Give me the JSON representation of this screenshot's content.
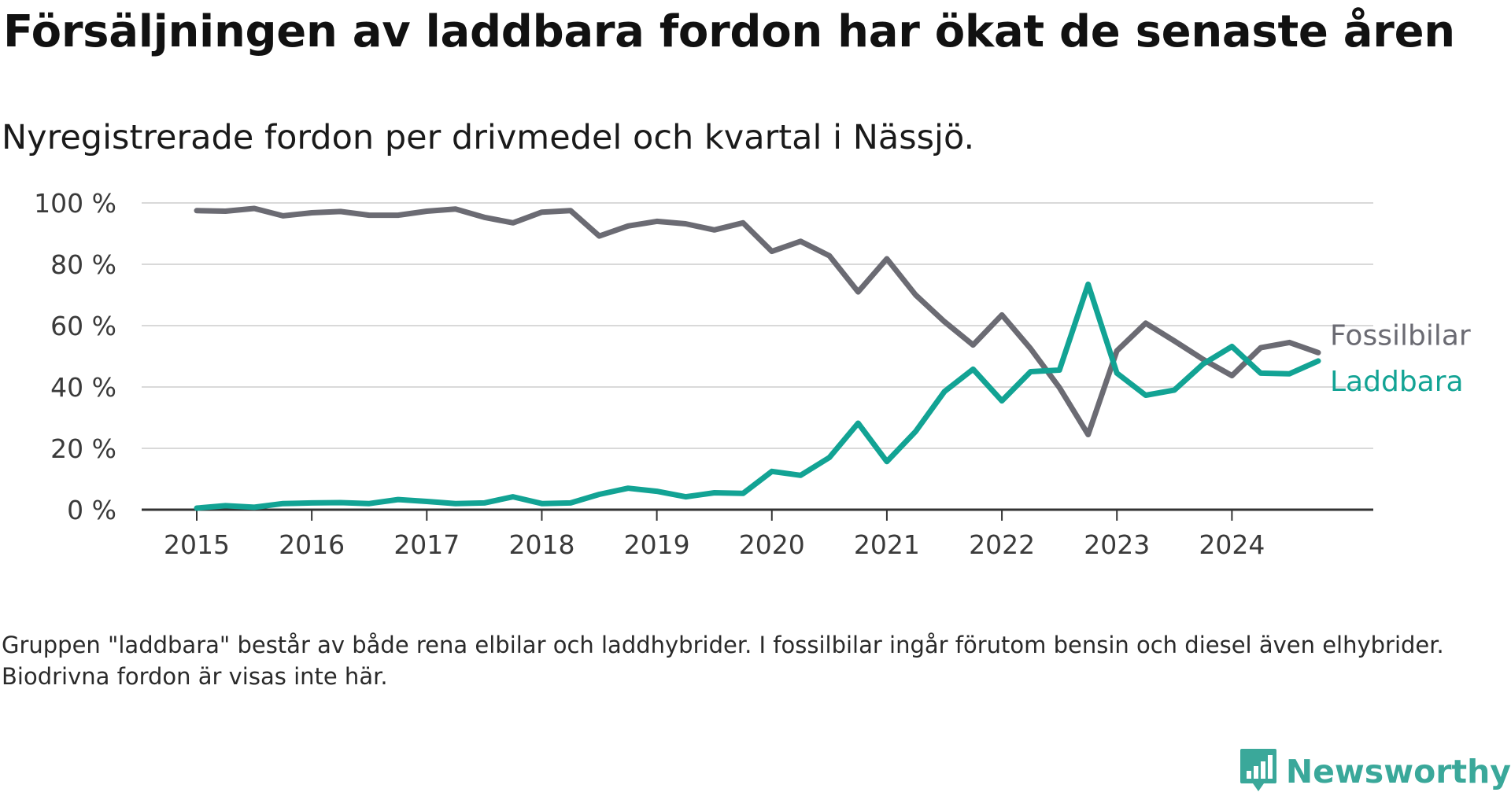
{
  "title": "Försäljningen av laddbara fordon har ökat de senaste åren",
  "subtitle": "Nyregistrerade fordon per drivmedel och kvartal i Nässjö.",
  "note": "Gruppen \"laddbara\" består av både rena elbilar och laddhybrider. I fossilbilar ingår förutom bensin och diesel även elhybrider. Biodrivna fordon är visas inte här.",
  "brand": {
    "name": "Newsworthy",
    "icon": "newsworthy-logo-icon",
    "color": "#3aa89a"
  },
  "chart_data": {
    "type": "line",
    "title": "Nyregistrerade fordon per drivmedel och kvartal i Nässjö.",
    "xlabel": "",
    "ylabel": "",
    "ylim": [
      0,
      100
    ],
    "xlim": [
      2014.5,
      2025.2
    ],
    "yticks": [
      0,
      20,
      40,
      60,
      80,
      100
    ],
    "ytick_labels": [
      "0 %",
      "20 %",
      "40 %",
      "60 %",
      "80 %",
      "100 %"
    ],
    "xticks": [
      2015,
      2016,
      2017,
      2018,
      2019,
      2020,
      2021,
      2022,
      2023,
      2024
    ],
    "xtick_labels": [
      "2015",
      "2016",
      "2017",
      "2018",
      "2019",
      "2020",
      "2021",
      "2022",
      "2023",
      "2024"
    ],
    "grid": true,
    "legend": "inline-right",
    "x": [
      2015.0,
      2015.25,
      2015.5,
      2015.75,
      2016.0,
      2016.25,
      2016.5,
      2016.75,
      2017.0,
      2017.25,
      2017.5,
      2017.75,
      2018.0,
      2018.25,
      2018.5,
      2018.75,
      2019.0,
      2019.25,
      2019.5,
      2019.75,
      2020.0,
      2020.25,
      2020.5,
      2020.75,
      2021.0,
      2021.25,
      2021.5,
      2021.75,
      2022.0,
      2022.25,
      2022.5,
      2022.75,
      2023.0,
      2023.25,
      2023.5,
      2023.75,
      2024.0,
      2024.25,
      2024.5,
      2024.75
    ],
    "series": [
      {
        "name": "Fossilbilar",
        "color": "#6b6b73",
        "values": [
          97.5,
          97.3,
          98.2,
          95.8,
          96.8,
          97.2,
          96.0,
          96.0,
          97.3,
          98.0,
          95.3,
          93.5,
          97.0,
          97.5,
          89.2,
          92.5,
          94.0,
          93.2,
          91.2,
          93.5,
          84.2,
          87.5,
          82.8,
          71.0,
          81.8,
          70.0,
          61.3,
          53.7,
          63.5,
          52.5,
          39.8,
          24.5,
          51.8,
          60.8,
          55.0,
          49.0,
          43.7,
          52.8,
          54.5,
          51.2
        ]
      },
      {
        "name": "Laddbara",
        "color": "#12a394",
        "values": [
          0.5,
          1.3,
          0.8,
          2.0,
          2.2,
          2.3,
          2.0,
          3.3,
          2.7,
          2.0,
          2.2,
          4.2,
          2.0,
          2.2,
          5.0,
          7.0,
          6.0,
          4.2,
          5.5,
          5.3,
          12.5,
          11.2,
          17.0,
          28.2,
          15.7,
          25.5,
          38.5,
          45.8,
          35.5,
          45.0,
          45.5,
          73.5,
          44.5,
          37.3,
          39.0,
          47.5,
          53.2,
          44.5,
          44.3,
          48.5
        ]
      }
    ]
  }
}
